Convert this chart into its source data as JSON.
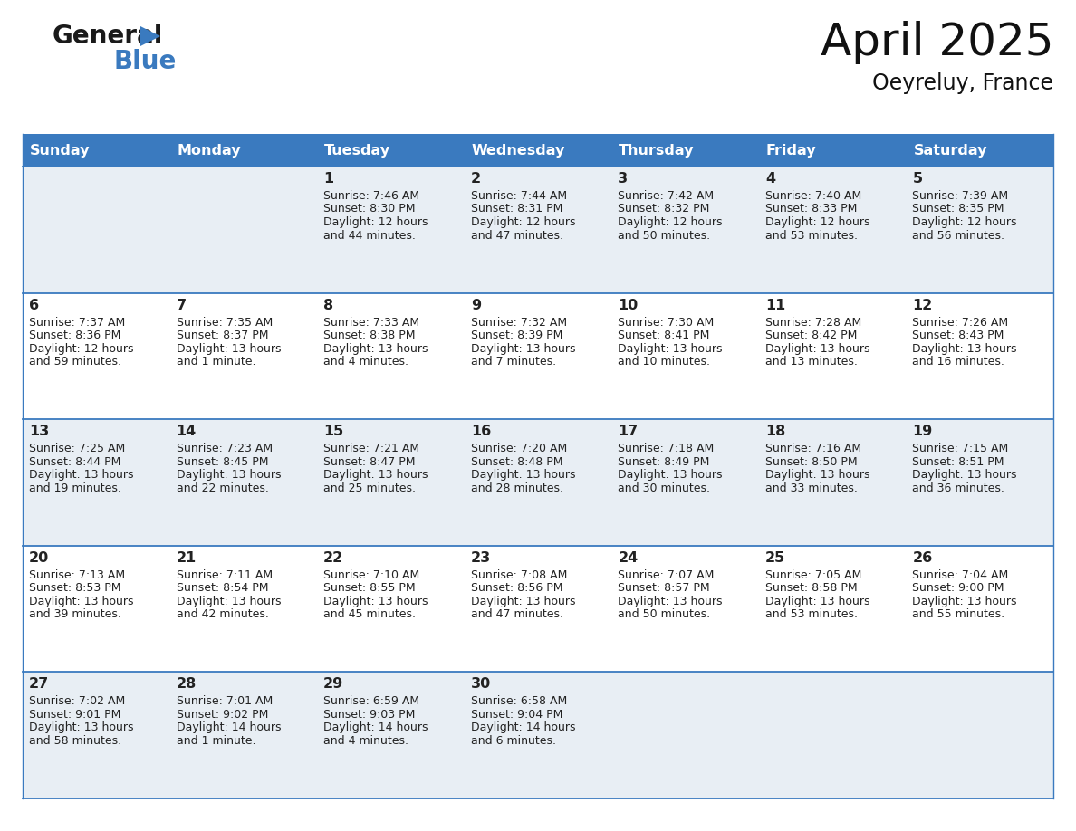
{
  "title": "April 2025",
  "subtitle": "Oeyreluy, France",
  "header_bg_color": "#3a7abf",
  "header_text_color": "#ffffff",
  "cell_bg_odd": "#e8eef4",
  "cell_bg_even": "#ffffff",
  "cell_border_color": "#3a7abf",
  "text_color": "#222222",
  "days_of_week": [
    "Sunday",
    "Monday",
    "Tuesday",
    "Wednesday",
    "Thursday",
    "Friday",
    "Saturday"
  ],
  "weeks": [
    [
      {
        "day": "",
        "lines": []
      },
      {
        "day": "",
        "lines": []
      },
      {
        "day": "1",
        "lines": [
          "Sunrise: 7:46 AM",
          "Sunset: 8:30 PM",
          "Daylight: 12 hours",
          "and 44 minutes."
        ]
      },
      {
        "day": "2",
        "lines": [
          "Sunrise: 7:44 AM",
          "Sunset: 8:31 PM",
          "Daylight: 12 hours",
          "and 47 minutes."
        ]
      },
      {
        "day": "3",
        "lines": [
          "Sunrise: 7:42 AM",
          "Sunset: 8:32 PM",
          "Daylight: 12 hours",
          "and 50 minutes."
        ]
      },
      {
        "day": "4",
        "lines": [
          "Sunrise: 7:40 AM",
          "Sunset: 8:33 PM",
          "Daylight: 12 hours",
          "and 53 minutes."
        ]
      },
      {
        "day": "5",
        "lines": [
          "Sunrise: 7:39 AM",
          "Sunset: 8:35 PM",
          "Daylight: 12 hours",
          "and 56 minutes."
        ]
      }
    ],
    [
      {
        "day": "6",
        "lines": [
          "Sunrise: 7:37 AM",
          "Sunset: 8:36 PM",
          "Daylight: 12 hours",
          "and 59 minutes."
        ]
      },
      {
        "day": "7",
        "lines": [
          "Sunrise: 7:35 AM",
          "Sunset: 8:37 PM",
          "Daylight: 13 hours",
          "and 1 minute."
        ]
      },
      {
        "day": "8",
        "lines": [
          "Sunrise: 7:33 AM",
          "Sunset: 8:38 PM",
          "Daylight: 13 hours",
          "and 4 minutes."
        ]
      },
      {
        "day": "9",
        "lines": [
          "Sunrise: 7:32 AM",
          "Sunset: 8:39 PM",
          "Daylight: 13 hours",
          "and 7 minutes."
        ]
      },
      {
        "day": "10",
        "lines": [
          "Sunrise: 7:30 AM",
          "Sunset: 8:41 PM",
          "Daylight: 13 hours",
          "and 10 minutes."
        ]
      },
      {
        "day": "11",
        "lines": [
          "Sunrise: 7:28 AM",
          "Sunset: 8:42 PM",
          "Daylight: 13 hours",
          "and 13 minutes."
        ]
      },
      {
        "day": "12",
        "lines": [
          "Sunrise: 7:26 AM",
          "Sunset: 8:43 PM",
          "Daylight: 13 hours",
          "and 16 minutes."
        ]
      }
    ],
    [
      {
        "day": "13",
        "lines": [
          "Sunrise: 7:25 AM",
          "Sunset: 8:44 PM",
          "Daylight: 13 hours",
          "and 19 minutes."
        ]
      },
      {
        "day": "14",
        "lines": [
          "Sunrise: 7:23 AM",
          "Sunset: 8:45 PM",
          "Daylight: 13 hours",
          "and 22 minutes."
        ]
      },
      {
        "day": "15",
        "lines": [
          "Sunrise: 7:21 AM",
          "Sunset: 8:47 PM",
          "Daylight: 13 hours",
          "and 25 minutes."
        ]
      },
      {
        "day": "16",
        "lines": [
          "Sunrise: 7:20 AM",
          "Sunset: 8:48 PM",
          "Daylight: 13 hours",
          "and 28 minutes."
        ]
      },
      {
        "day": "17",
        "lines": [
          "Sunrise: 7:18 AM",
          "Sunset: 8:49 PM",
          "Daylight: 13 hours",
          "and 30 minutes."
        ]
      },
      {
        "day": "18",
        "lines": [
          "Sunrise: 7:16 AM",
          "Sunset: 8:50 PM",
          "Daylight: 13 hours",
          "and 33 minutes."
        ]
      },
      {
        "day": "19",
        "lines": [
          "Sunrise: 7:15 AM",
          "Sunset: 8:51 PM",
          "Daylight: 13 hours",
          "and 36 minutes."
        ]
      }
    ],
    [
      {
        "day": "20",
        "lines": [
          "Sunrise: 7:13 AM",
          "Sunset: 8:53 PM",
          "Daylight: 13 hours",
          "and 39 minutes."
        ]
      },
      {
        "day": "21",
        "lines": [
          "Sunrise: 7:11 AM",
          "Sunset: 8:54 PM",
          "Daylight: 13 hours",
          "and 42 minutes."
        ]
      },
      {
        "day": "22",
        "lines": [
          "Sunrise: 7:10 AM",
          "Sunset: 8:55 PM",
          "Daylight: 13 hours",
          "and 45 minutes."
        ]
      },
      {
        "day": "23",
        "lines": [
          "Sunrise: 7:08 AM",
          "Sunset: 8:56 PM",
          "Daylight: 13 hours",
          "and 47 minutes."
        ]
      },
      {
        "day": "24",
        "lines": [
          "Sunrise: 7:07 AM",
          "Sunset: 8:57 PM",
          "Daylight: 13 hours",
          "and 50 minutes."
        ]
      },
      {
        "day": "25",
        "lines": [
          "Sunrise: 7:05 AM",
          "Sunset: 8:58 PM",
          "Daylight: 13 hours",
          "and 53 minutes."
        ]
      },
      {
        "day": "26",
        "lines": [
          "Sunrise: 7:04 AM",
          "Sunset: 9:00 PM",
          "Daylight: 13 hours",
          "and 55 minutes."
        ]
      }
    ],
    [
      {
        "day": "27",
        "lines": [
          "Sunrise: 7:02 AM",
          "Sunset: 9:01 PM",
          "Daylight: 13 hours",
          "and 58 minutes."
        ]
      },
      {
        "day": "28",
        "lines": [
          "Sunrise: 7:01 AM",
          "Sunset: 9:02 PM",
          "Daylight: 14 hours",
          "and 1 minute."
        ]
      },
      {
        "day": "29",
        "lines": [
          "Sunrise: 6:59 AM",
          "Sunset: 9:03 PM",
          "Daylight: 14 hours",
          "and 4 minutes."
        ]
      },
      {
        "day": "30",
        "lines": [
          "Sunrise: 6:58 AM",
          "Sunset: 9:04 PM",
          "Daylight: 14 hours",
          "and 6 minutes."
        ]
      },
      {
        "day": "",
        "lines": []
      },
      {
        "day": "",
        "lines": []
      },
      {
        "day": "",
        "lines": []
      }
    ]
  ]
}
